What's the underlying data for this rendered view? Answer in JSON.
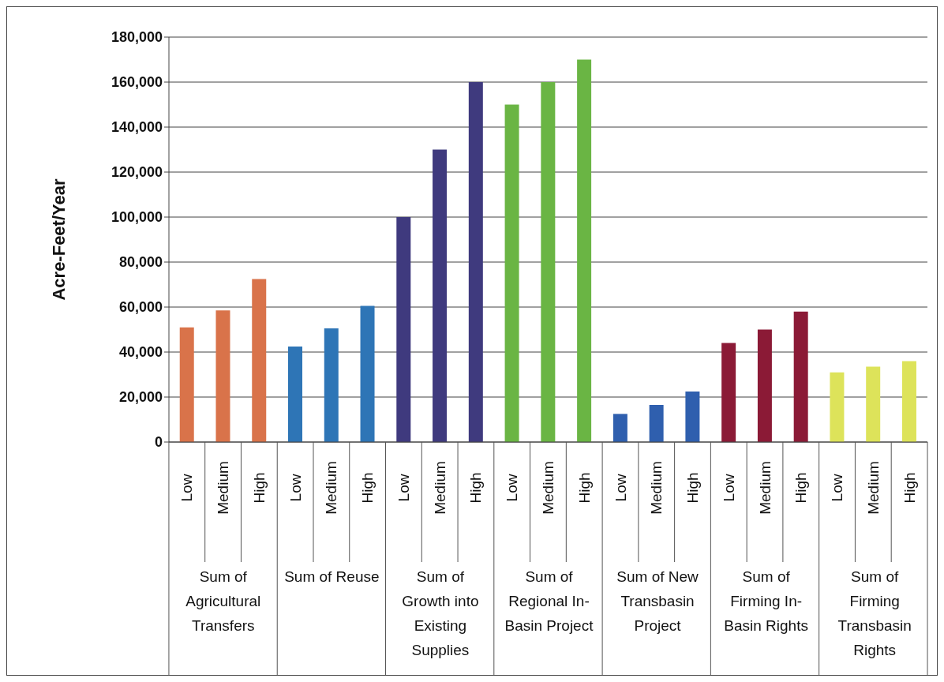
{
  "chart_data": {
    "type": "bar",
    "ylabel": "Acre-Feet/Year",
    "categories": [
      "Low",
      "Medium",
      "High",
      "Low",
      "Medium",
      "High",
      "Low",
      "Medium",
      "High",
      "Low",
      "Medium",
      "High",
      "Low",
      "Medium",
      "High",
      "Low",
      "Medium",
      "High",
      "Low",
      "Medium",
      "High"
    ],
    "values": [
      51000,
      58500,
      72500,
      42500,
      50500,
      60500,
      100000,
      130000,
      160000,
      150000,
      160000,
      170000,
      12500,
      16500,
      22500,
      44000,
      50000,
      58000,
      31000,
      33500,
      36000
    ],
    "colors": [
      "#d9734a",
      "#d9734a",
      "#d9734a",
      "#2e75b6",
      "#2e75b6",
      "#2e75b6",
      "#3f3a7e",
      "#3f3a7e",
      "#3f3a7e",
      "#6ab544",
      "#6ab544",
      "#6ab544",
      "#2f5fae",
      "#2f5fae",
      "#2f5fae",
      "#8b1a36",
      "#8b1a36",
      "#8b1a36",
      "#dde35a",
      "#dde35a",
      "#dde35a"
    ],
    "annotations": [
      "Sum of Agricultural Transfers",
      "Sum of Reuse",
      "Sum of Growth into Existing Supplies",
      "Sum of Regional In-Basin Project",
      "Sum of New Transbasin Project",
      "Sum of Firming In-Basin Rights",
      "Sum of Firming Transbasin Rights"
    ],
    "ylim": [
      0,
      180000
    ],
    "yticks": [
      0,
      {
        "value": 20000,
        "label": "20,000"
      },
      {
        "value": 40000,
        "label": "40,000"
      },
      {
        "value": 60000,
        "label": "60,000"
      },
      {
        "value": 80000,
        "label": "80,000"
      },
      {
        "value": 100000,
        "label": "100,000"
      },
      {
        "value": 120000,
        "label": "120,000"
      },
      {
        "value": 140000,
        "label": "140,000"
      },
      {
        "value": 160000,
        "label": "160,000"
      },
      {
        "value": 180000,
        "label": "180,000"
      }
    ],
    "grid": "y",
    "legend": false
  }
}
